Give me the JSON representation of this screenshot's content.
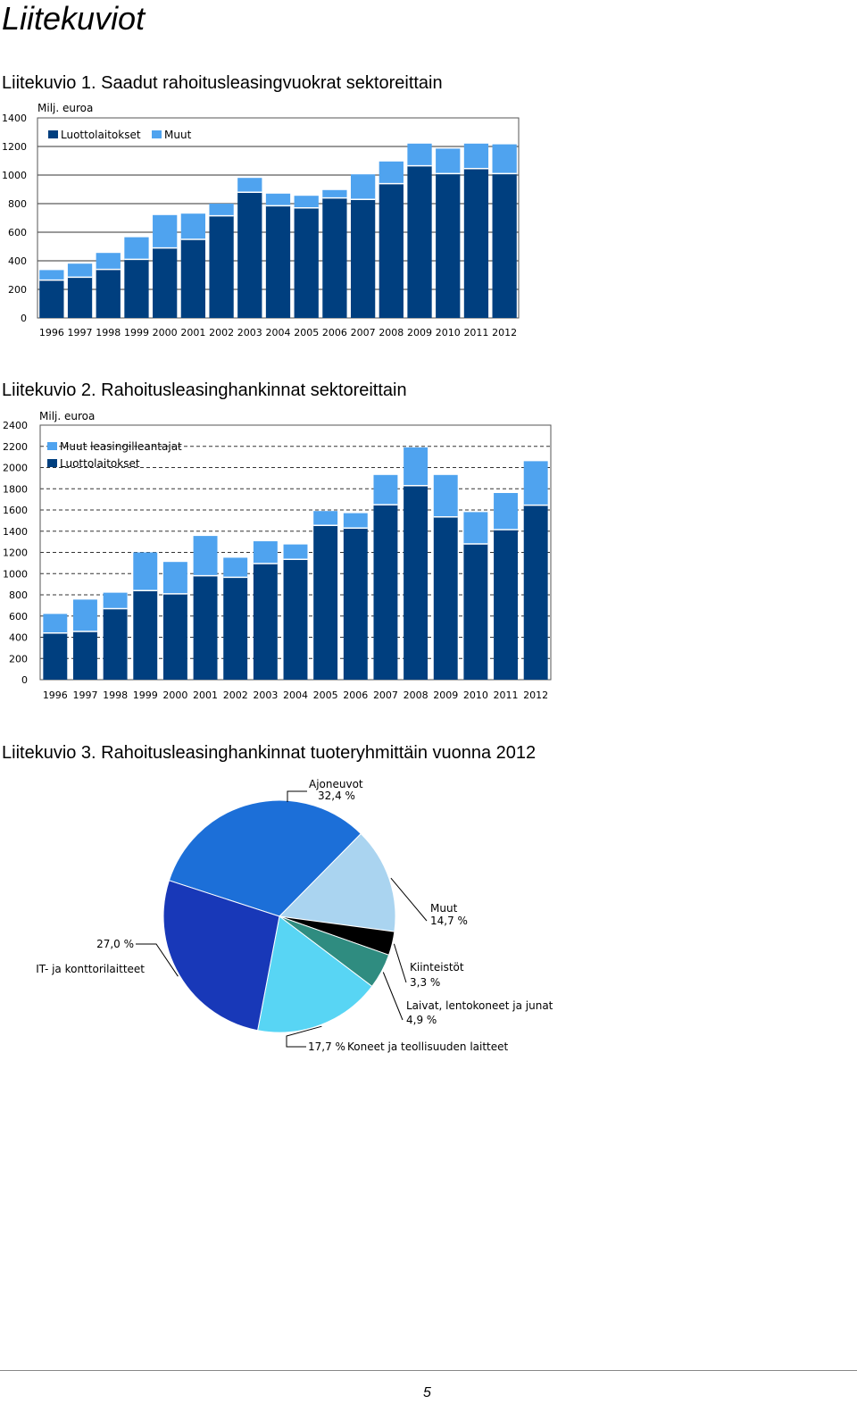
{
  "page_title": "Liitekuviot",
  "page_number": "5",
  "colors": {
    "dark_bar": "#003f7f",
    "light_bar": "#4fa3ef",
    "pie": [
      "#1c6fd8",
      "#aad4f0",
      "#000000",
      "#2f8c80",
      "#58d5f4",
      "#1838b8"
    ]
  },
  "figures": [
    {
      "caption": "Liitekuvio 1. Saadut rahoitusleasingvuokrat sektoreittain"
    },
    {
      "caption": "Liitekuvio 2. Rahoitusleasinghankinnat sektoreittain"
    },
    {
      "caption": "Liitekuvio 3. Rahoitusleasinghankinnat tuoteryhmittäin vuonna 2012"
    }
  ],
  "chart_data": [
    {
      "type": "bar",
      "stacked": true,
      "ylabel": "Milj. euroa",
      "ylim": [
        0,
        1400
      ],
      "yticks": [
        0,
        200,
        400,
        600,
        800,
        1000,
        1200,
        1400
      ],
      "grid": true,
      "legend_position": "top-left",
      "categories": [
        "1996",
        "1997",
        "1998",
        "1999",
        "2000",
        "2001",
        "2002",
        "2003",
        "2004",
        "2005",
        "2006",
        "2007",
        "2008",
        "2009",
        "2010",
        "2011",
        "2012"
      ],
      "series": [
        {
          "name": "Luottolaitokset",
          "values": [
            265,
            285,
            340,
            410,
            490,
            550,
            715,
            880,
            785,
            770,
            840,
            830,
            940,
            1065,
            1010,
            1045,
            1010
          ]
        },
        {
          "name": "Muut",
          "values": [
            70,
            95,
            115,
            155,
            230,
            180,
            85,
            100,
            85,
            85,
            55,
            175,
            155,
            155,
            175,
            175,
            205
          ]
        }
      ]
    },
    {
      "type": "bar",
      "stacked": true,
      "ylabel": "Milj. euroa",
      "ylim": [
        0,
        2400
      ],
      "yticks": [
        0,
        200,
        400,
        600,
        800,
        1000,
        1200,
        1400,
        1600,
        1800,
        2000,
        2200,
        2400
      ],
      "grid": true,
      "legend_position": "top-left",
      "categories": [
        "1996",
        "1997",
        "1998",
        "1999",
        "2000",
        "2001",
        "2002",
        "2003",
        "2004",
        "2005",
        "2006",
        "2007",
        "2008",
        "2009",
        "2010",
        "2011",
        "2012"
      ],
      "series": [
        {
          "name": "Luottolaitokset",
          "values": [
            440,
            455,
            670,
            840,
            810,
            980,
            965,
            1095,
            1135,
            1455,
            1430,
            1650,
            1830,
            1535,
            1280,
            1415,
            1645
          ]
        },
        {
          "name": "Muut leasingilleantajat",
          "values": [
            180,
            300,
            150,
            360,
            300,
            375,
            185,
            210,
            140,
            135,
            140,
            280,
            360,
            395,
            300,
            345,
            415
          ]
        }
      ]
    },
    {
      "type": "pie",
      "slices": [
        {
          "label": "Ajoneuvot",
          "value": 32.4,
          "value_text": "32,4 %"
        },
        {
          "label": "Muut",
          "value": 14.7,
          "value_text": "14,7 %"
        },
        {
          "label": "Kiinteistöt",
          "value": 3.3,
          "value_text": "3,3 %"
        },
        {
          "label": "Laivat, lentokoneet ja junat",
          "value": 4.9,
          "value_text": "4,9 %"
        },
        {
          "label": "Koneet ja teollisuuden laitteet",
          "value": 17.7,
          "value_text": "17,7 %"
        },
        {
          "label": "IT- ja konttorilaitteet",
          "value": 27.0,
          "value_text": "27,0 %"
        }
      ]
    }
  ]
}
